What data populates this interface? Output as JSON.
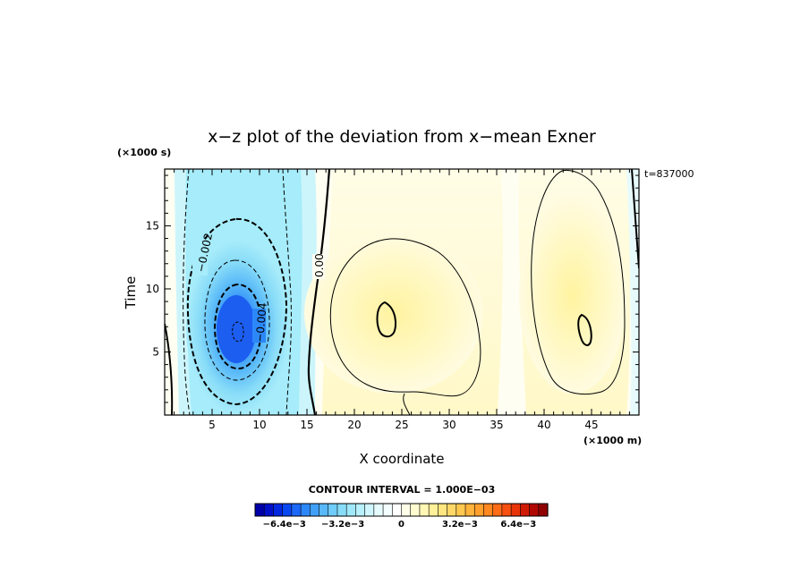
{
  "chart_data": {
    "type": "heatmap",
    "title": "x−z plot of the deviation from x−mean Exner",
    "xlabel": "X coordinate",
    "ylabel": "Time",
    "x_unit": "(×1000 m)",
    "y_unit": "(×1000 s)",
    "time_stamp": "t=837000",
    "xlim": [
      0,
      50
    ],
    "ylim": [
      0,
      19.5
    ],
    "x_ticks": [
      "5",
      "10",
      "15",
      "20",
      "25",
      "30",
      "35",
      "40",
      "45"
    ],
    "y_ticks": [
      "5",
      "10",
      "15"
    ],
    "contour_interval_text": "CONTOUR INTERVAL = 1.000E−03",
    "contour_labels": [
      "−0.002",
      "−0.004",
      "0.00"
    ],
    "features": [
      {
        "x": 7.8,
        "y": 6.5,
        "value": -0.0065
      },
      {
        "x": 23.5,
        "y": 8.0,
        "value": 0.002
      },
      {
        "x": 44.5,
        "y": 7.5,
        "value": 0.002
      }
    ],
    "colorbar": {
      "min": -0.008,
      "max": 0.008,
      "tick_labels": [
        "−6.4e−3",
        "−3.2e−3",
        "0",
        "3.2e−3",
        "6.4e−3"
      ],
      "tick_values": [
        -0.0064,
        -0.0032,
        0,
        0.0032,
        0.0064
      ],
      "colors": [
        "#0000a8",
        "#0010c8",
        "#0028e0",
        "#0848f0",
        "#1c68f8",
        "#2c88f8",
        "#40a0f8",
        "#58b8f8",
        "#70ccf8",
        "#88dcf8",
        "#a0e8fa",
        "#b8f0fc",
        "#d0f6fd",
        "#e6fbfe",
        "#f4fdff",
        "#ffffff",
        "#ffffe8",
        "#fffcd0",
        "#fff8b4",
        "#fff09a",
        "#ffe680",
        "#ffd868",
        "#ffc850",
        "#ffb43c",
        "#ffa02c",
        "#ff8820",
        "#ff6c18",
        "#f85010",
        "#e83408",
        "#d01c04",
        "#b00800",
        "#900000"
      ]
    }
  }
}
